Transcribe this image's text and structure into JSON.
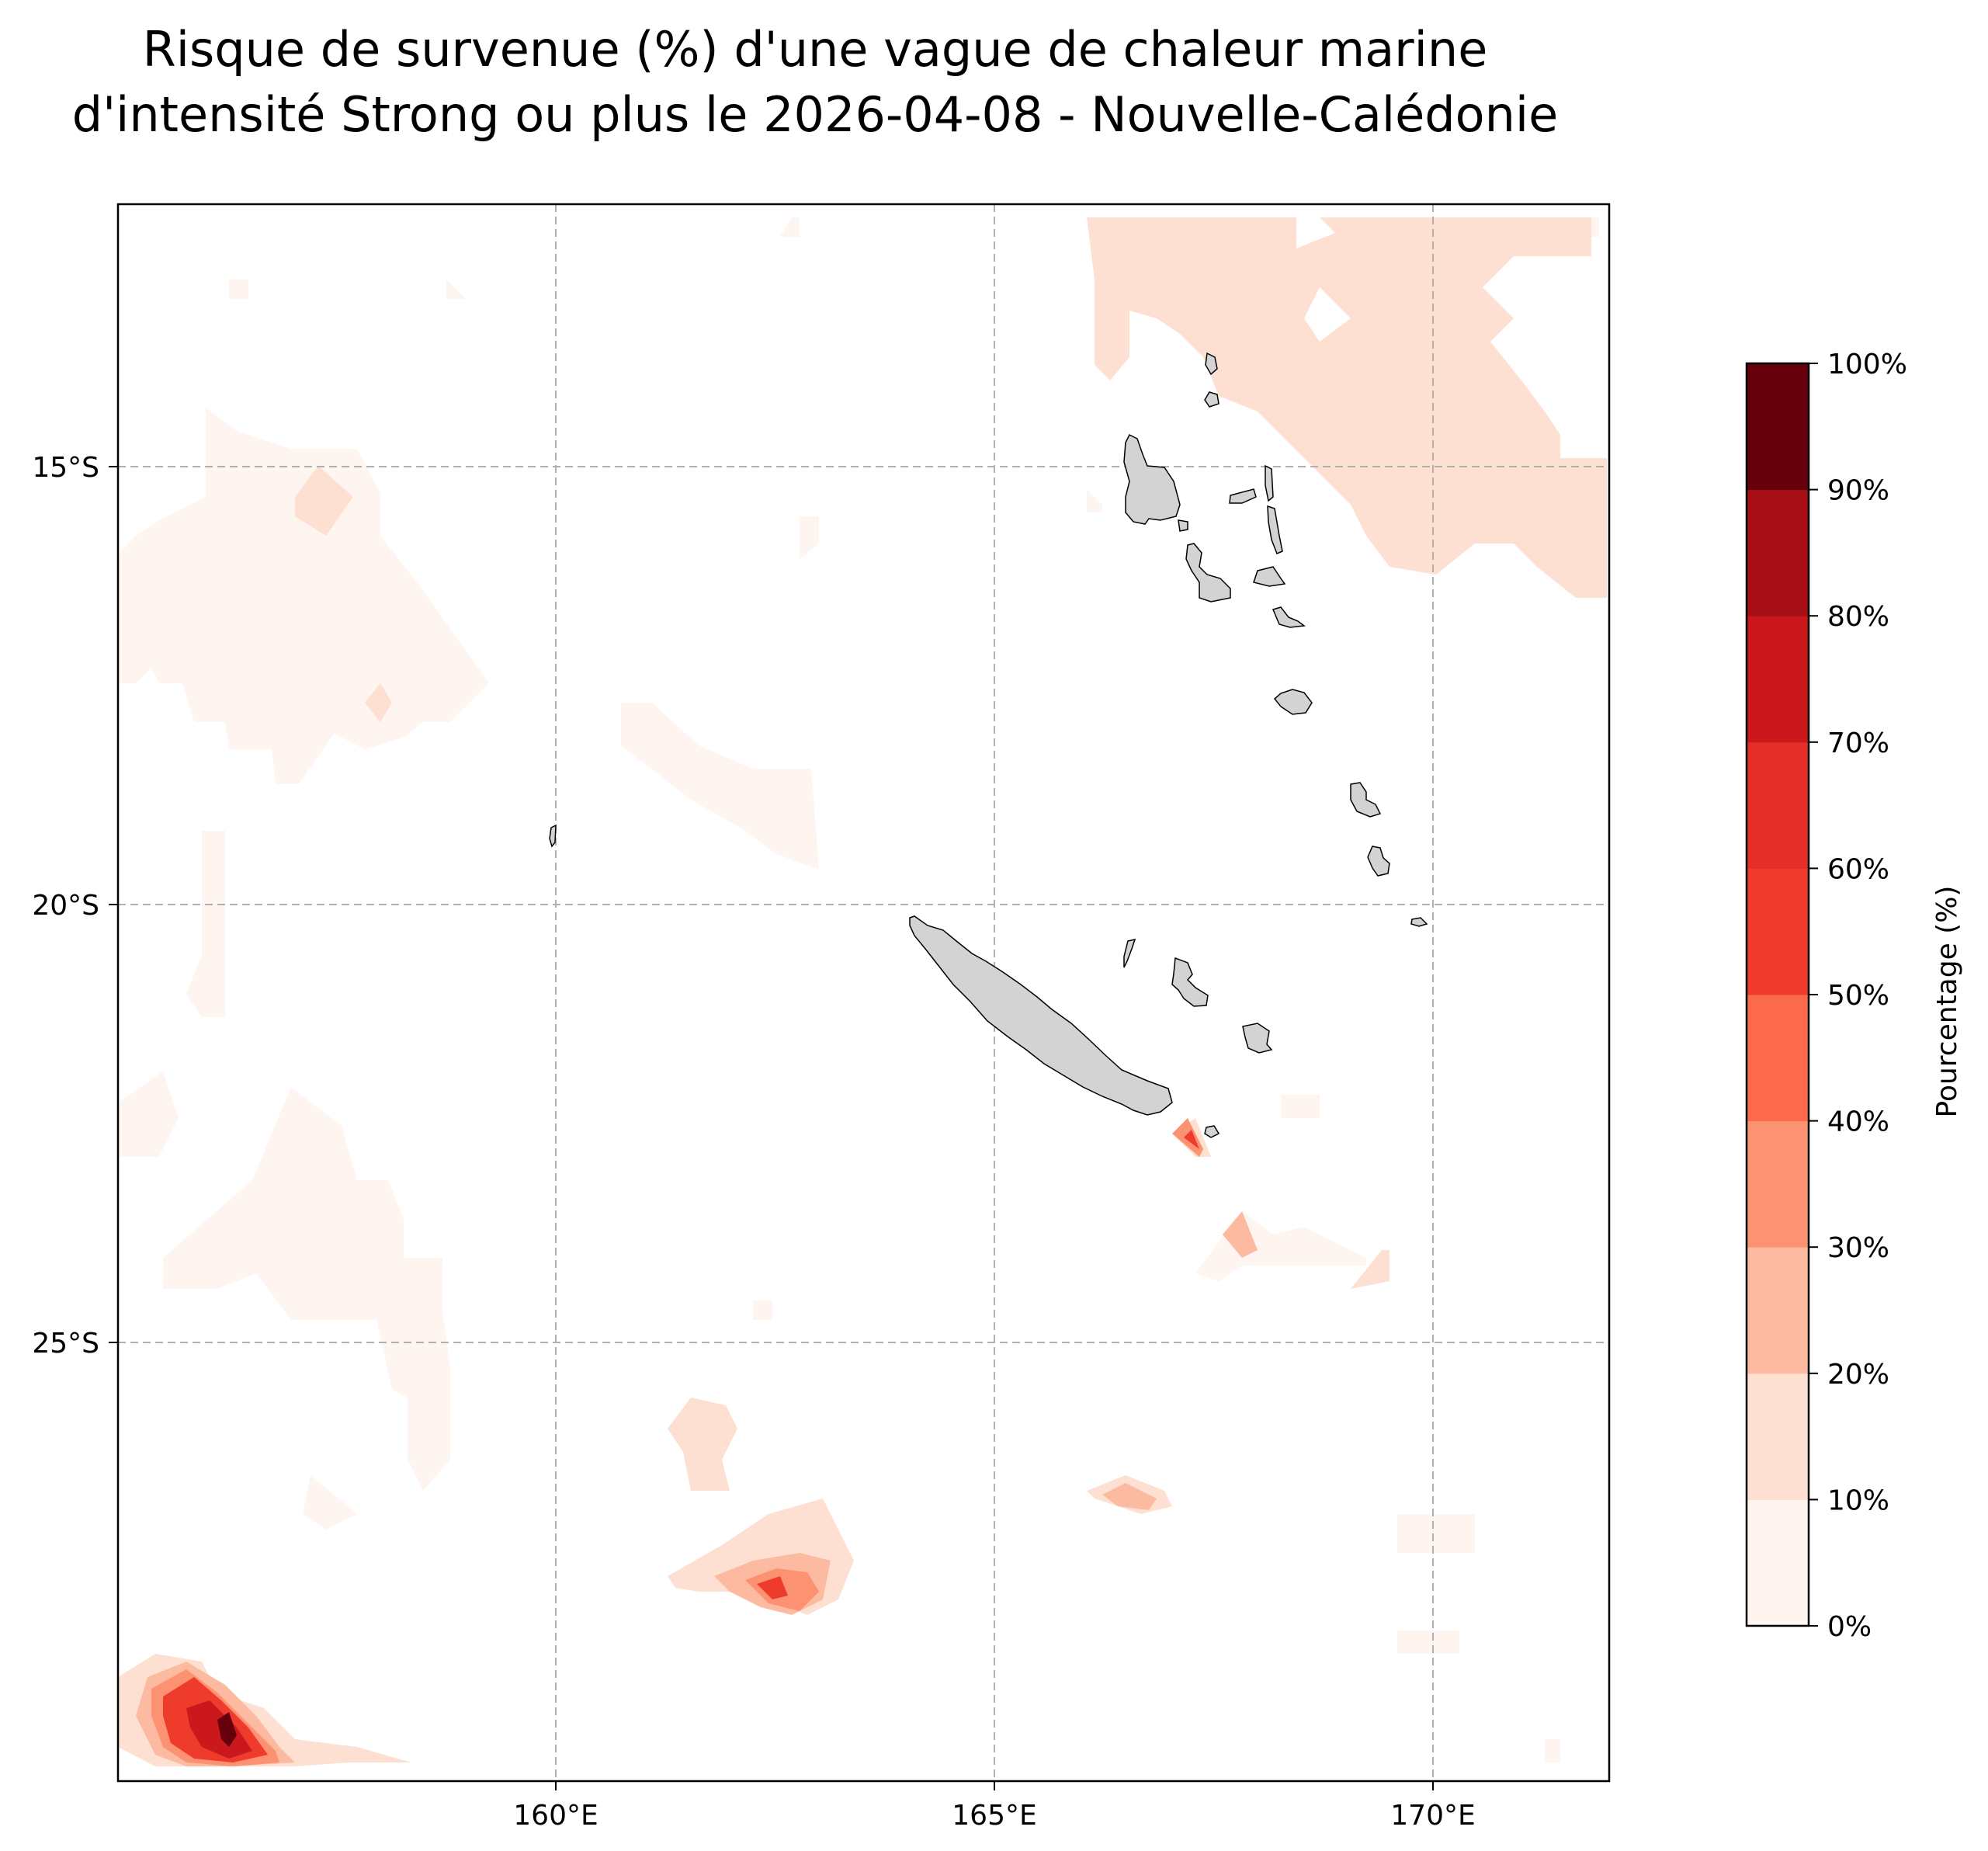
{
  "title": {
    "line1": "Risque de survenue (%) d'une vague de chaleur marine",
    "line2": "d'intensité Strong ou plus le 2026-04-08 - Nouvelle-Calédonie"
  },
  "map": {
    "lon_range": [
      155,
      172
    ],
    "lat_range": [
      -30.3,
      -12.3
    ],
    "gridlines": true,
    "lon_ticks": [
      {
        "value": 160,
        "label": "160°E"
      },
      {
        "value": 165,
        "label": "165°E"
      },
      {
        "value": 170,
        "label": "170°E"
      }
    ],
    "lat_ticks": [
      {
        "value": -15,
        "label": "15°S"
      },
      {
        "value": -20,
        "label": "20°S"
      },
      {
        "value": -25,
        "label": "25°S"
      }
    ],
    "land_color": "#d3d3d3",
    "hotspots": [
      {
        "lon": 156.3,
        "lat": -29.3,
        "max_pct": 95
      },
      {
        "lon": 162.5,
        "lat": -28.0,
        "max_pct": 55
      },
      {
        "lon": 167.2,
        "lat": -22.5,
        "max_pct": 55
      },
      {
        "lon": 167.8,
        "lat": -23.7,
        "max_pct": 35
      },
      {
        "lon": 166.7,
        "lat": -26.6,
        "max_pct": 35
      }
    ]
  },
  "colorbar": {
    "label": "Pourcentage (%)",
    "colors": [
      "#fff5f0",
      "#fee0d2",
      "#fcbba1",
      "#fc9272",
      "#fb6a4a",
      "#ef3b2c",
      "#e32f27",
      "#cb181d",
      "#a50f15",
      "#67000d"
    ],
    "ticks": [
      "0%",
      "10%",
      "20%",
      "30%",
      "40%",
      "50%",
      "60%",
      "70%",
      "80%",
      "90%",
      "100%"
    ]
  }
}
